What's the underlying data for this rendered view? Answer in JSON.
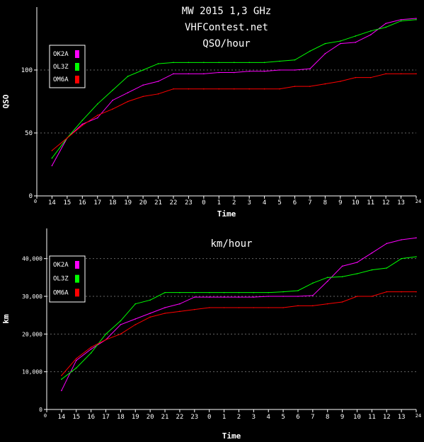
{
  "colors": {
    "background": "#000000",
    "axis": "#ffffff",
    "grid": "#666666",
    "text": "#ffffff",
    "OK2A": "#ff00ff",
    "OL3Z": "#00ff00",
    "OM6A": "#ff0000"
  },
  "chart_data": [
    {
      "type": "line",
      "title_lines": [
        "MW 2015 1,3 GHz",
        "VHFContest.net",
        "QSO/hour"
      ],
      "xlabel": "Time",
      "ylabel": "QSO",
      "x_ticks": [
        "0",
        "14",
        "15",
        "16",
        "17",
        "18",
        "19",
        "20",
        "21",
        "22",
        "23",
        "0",
        "1",
        "2",
        "3",
        "4",
        "5",
        "6",
        "7",
        "8",
        "9",
        "10",
        "11",
        "12",
        "13",
        "24"
      ],
      "y_ticks": [
        "0",
        "50",
        "100"
      ],
      "ylim": [
        0,
        150
      ],
      "grid": true,
      "legend_position": "top-left",
      "series": [
        {
          "name": "OK2A",
          "color": "#ff00ff",
          "values": [
            24,
            46,
            57,
            62,
            76,
            82,
            88,
            91,
            97,
            97,
            97,
            98,
            98,
            99,
            99,
            100,
            100,
            101,
            113,
            121,
            122,
            128,
            137,
            140,
            141
          ]
        },
        {
          "name": "OL3Z",
          "color": "#00ff00",
          "values": [
            30,
            46,
            60,
            73,
            84,
            95,
            100,
            105,
            106,
            106,
            106,
            106,
            106,
            106,
            106,
            107,
            108,
            115,
            121,
            123,
            127,
            131,
            134,
            139,
            140
          ]
        },
        {
          "name": "OM6A",
          "color": "#ff0000",
          "values": [
            36,
            46,
            56,
            64,
            69,
            75,
            79,
            81,
            85,
            85,
            85,
            85,
            85,
            85,
            85,
            85,
            87,
            87,
            89,
            91,
            94,
            94,
            97,
            97,
            97
          ]
        }
      ]
    },
    {
      "type": "line",
      "title_lines": [
        "km/hour"
      ],
      "xlabel": "Time",
      "ylabel": "km",
      "x_ticks": [
        "0",
        "14",
        "15",
        "16",
        "17",
        "18",
        "19",
        "20",
        "21",
        "22",
        "23",
        "0",
        "1",
        "2",
        "3",
        "4",
        "5",
        "6",
        "7",
        "8",
        "9",
        "10",
        "11",
        "12",
        "13",
        "24"
      ],
      "y_ticks": [
        "0",
        "10,000",
        "20,000",
        "30,000",
        "40,000"
      ],
      "ylim": [
        0,
        48000
      ],
      "grid": true,
      "legend_position": "top-left",
      "series": [
        {
          "name": "OK2A",
          "color": "#ff00ff",
          "values": [
            5000,
            13000,
            16000,
            18500,
            22500,
            24000,
            25500,
            27000,
            28000,
            29800,
            29800,
            29800,
            29800,
            29800,
            30000,
            30000,
            30000,
            30200,
            34000,
            38000,
            39000,
            41500,
            44000,
            45000,
            45500
          ]
        },
        {
          "name": "OL3Z",
          "color": "#00ff00",
          "values": [
            8000,
            11000,
            15000,
            20000,
            23500,
            28000,
            29000,
            31000,
            31000,
            31000,
            31000,
            31000,
            31000,
            31000,
            31000,
            31200,
            31500,
            33500,
            35000,
            35200,
            36000,
            37000,
            37500,
            40000,
            40500
          ]
        },
        {
          "name": "OM6A",
          "color": "#ff0000",
          "values": [
            9000,
            13500,
            16500,
            18500,
            20000,
            22500,
            24500,
            25500,
            26000,
            26500,
            27000,
            27000,
            27000,
            27000,
            27000,
            27000,
            27500,
            27500,
            28000,
            28500,
            30000,
            30000,
            31200,
            31200,
            31200
          ]
        }
      ]
    }
  ]
}
